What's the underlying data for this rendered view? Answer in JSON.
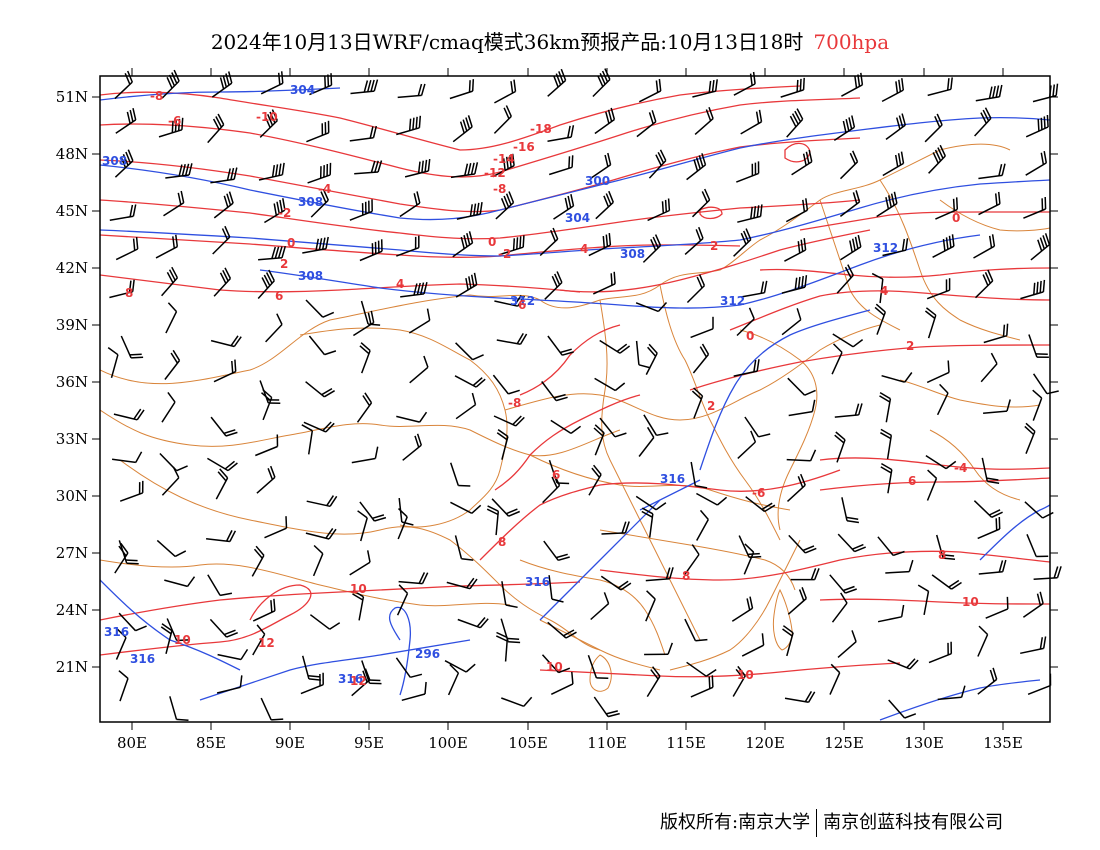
{
  "header": {
    "title": "2024年10月13日WRF/cmaq模式36km预报产品:10月13日18时",
    "level": "700hpa"
  },
  "colors": {
    "temperature": "#e8383b",
    "height": "#2f4fe0",
    "boundary": "#d9853b",
    "wind": "#000000"
  },
  "axes": {
    "lat_labels": [
      "51N",
      "48N",
      "45N",
      "42N",
      "39N",
      "36N",
      "33N",
      "30N",
      "27N",
      "24N",
      "21N"
    ],
    "lon_labels": [
      "80E",
      "85E",
      "90E",
      "95E",
      "100E",
      "105E",
      "110E",
      "115E",
      "120E",
      "125E",
      "130E",
      "135E"
    ]
  },
  "height_labels": [
    "304",
    "308",
    "308",
    "300",
    "308",
    "304",
    "308",
    "312",
    "312",
    "312",
    "316",
    "316",
    "316",
    "316",
    "316",
    "296"
  ],
  "temp_labels": [
    "-8",
    "-6",
    "-10",
    "-12",
    "-16",
    "-18",
    "-14",
    "-8",
    "-4",
    "-2",
    "0",
    "2",
    "4",
    "6",
    "8",
    "10",
    "12",
    "-2",
    "-8",
    "0",
    "0",
    "2",
    "2",
    "2",
    "4",
    "6",
    "6",
    "8",
    "8",
    "10",
    "10",
    "10",
    "10",
    "12",
    "-4",
    "6",
    "8",
    "0",
    "4",
    "-6"
  ],
  "footer": {
    "left": "版权所有:南京大学",
    "right": "南京创蓝科技有限公司"
  }
}
